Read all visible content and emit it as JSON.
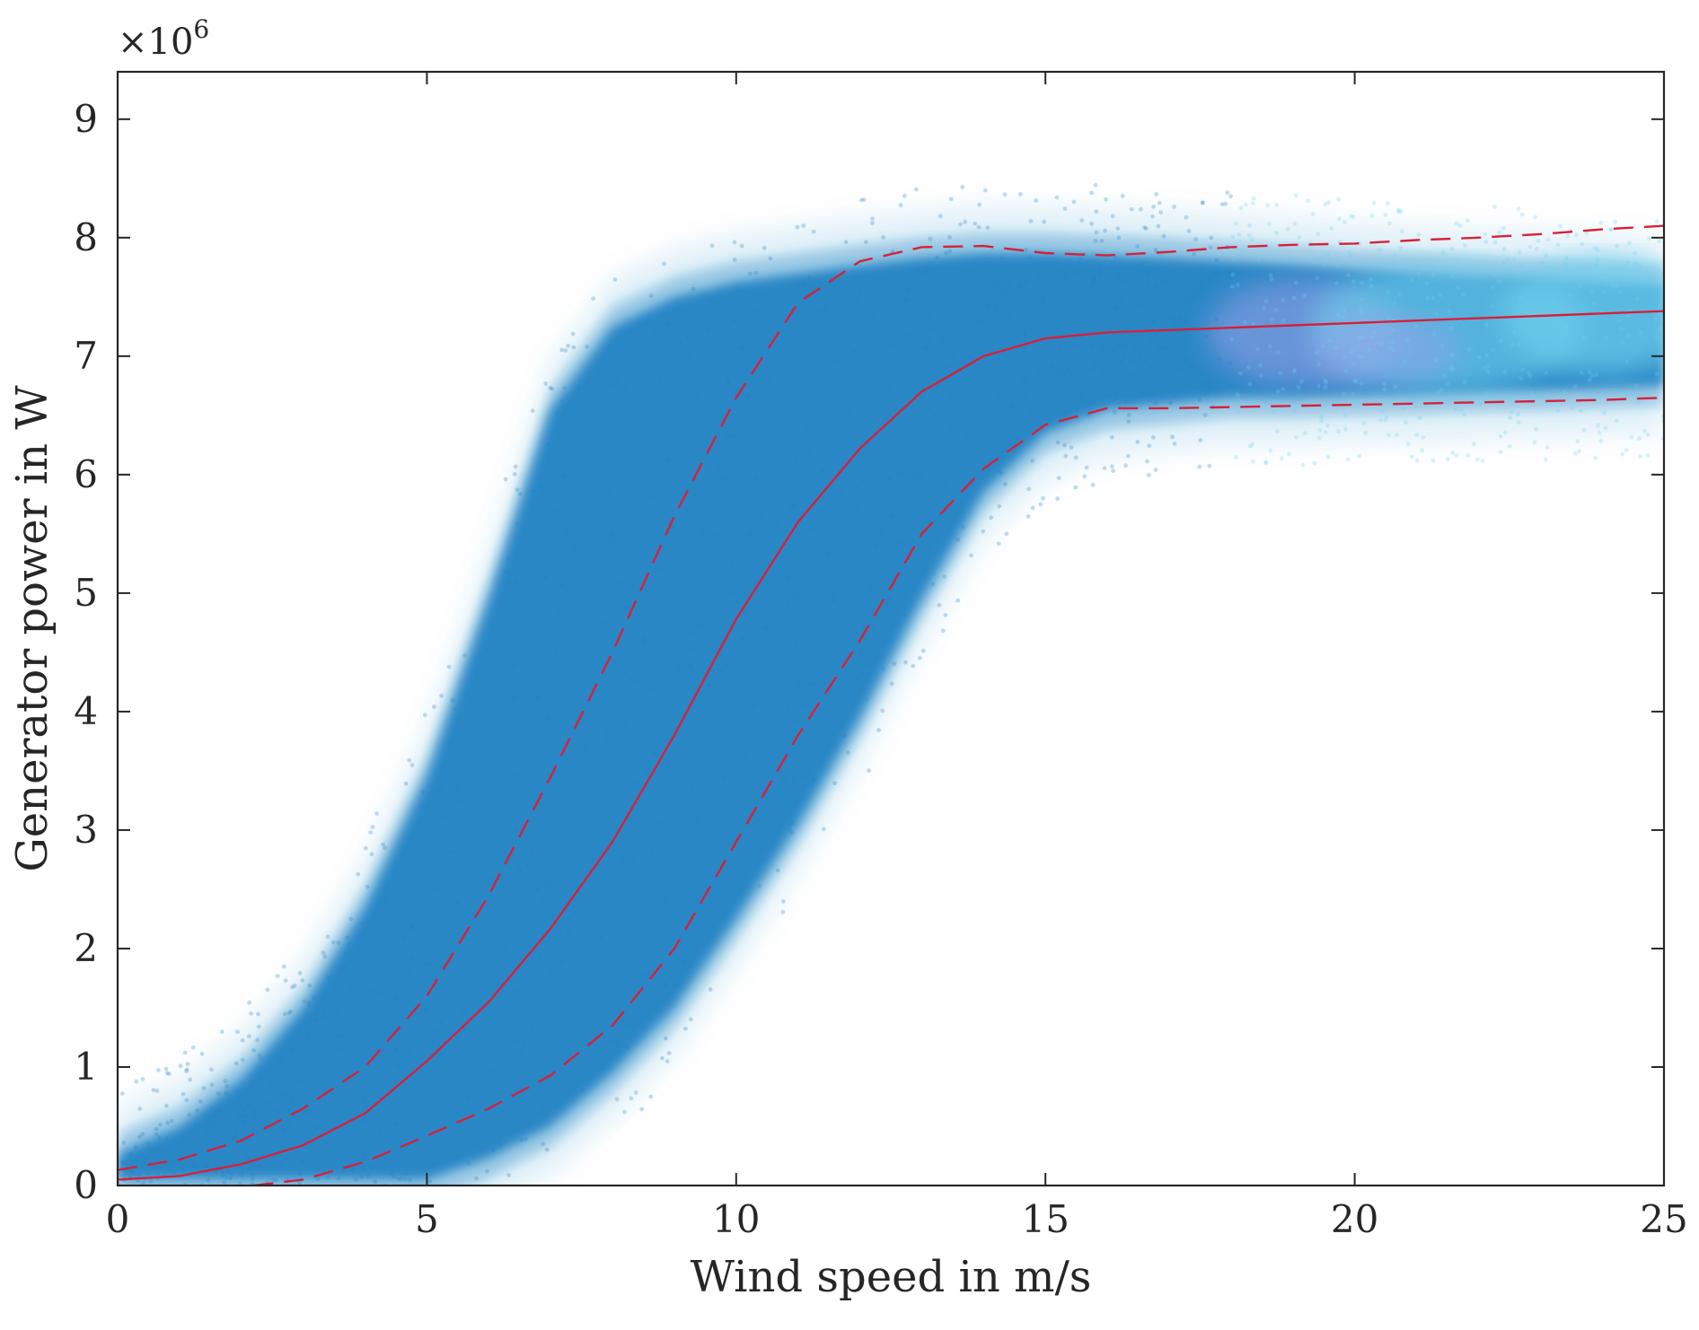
{
  "chart_data": {
    "type": "scatter",
    "xlabel": "Wind speed in m/s",
    "ylabel": "Generator power in W",
    "y_exponent_label": {
      "base": "×10",
      "power": "6"
    },
    "xlim": [
      0,
      25
    ],
    "ylim": [
      0,
      9.4
    ],
    "y_scale_factor": 1000000,
    "x_ticks": [
      0,
      5,
      10,
      15,
      20,
      25
    ],
    "x_tick_labels": [
      "0",
      "5",
      "10",
      "15",
      "20",
      "25"
    ],
    "y_ticks": [
      0,
      1,
      2,
      3,
      4,
      5,
      6,
      7,
      8,
      9
    ],
    "y_tick_labels": [
      "0",
      "1",
      "2",
      "3",
      "4",
      "5",
      "6",
      "7",
      "8",
      "9"
    ],
    "grid": false,
    "box": true,
    "colors": {
      "scatter": "#2383c4",
      "scatter_high_wind_a": "#6fd0ec",
      "scatter_high_wind_b": "#9b9fe8",
      "curves": "#d6203a",
      "axes": "#262626"
    },
    "series": [
      {
        "style": "solid",
        "x": [
          0,
          1,
          2,
          3,
          4,
          5,
          6,
          7,
          8,
          9,
          10,
          11,
          12,
          13,
          14,
          15,
          16,
          17,
          18,
          19,
          20,
          21,
          22,
          23,
          24,
          25
        ],
        "y": [
          0.05,
          0.08,
          0.18,
          0.34,
          0.61,
          1.05,
          1.55,
          2.17,
          2.9,
          3.8,
          4.78,
          5.6,
          6.22,
          6.7,
          7.0,
          7.15,
          7.2,
          7.22,
          7.24,
          7.26,
          7.28,
          7.3,
          7.32,
          7.34,
          7.36,
          7.38
        ]
      },
      {
        "style": "dashed",
        "x": [
          0,
          1,
          2,
          3,
          4,
          5,
          6,
          7,
          8,
          9,
          10,
          11,
          12,
          13,
          14,
          15,
          16,
          17,
          18,
          19,
          20,
          21,
          22,
          23,
          24,
          25
        ],
        "y": [
          0.13,
          0.22,
          0.38,
          0.65,
          1.0,
          1.6,
          2.45,
          3.45,
          4.5,
          5.65,
          6.65,
          7.45,
          7.8,
          7.92,
          7.93,
          7.87,
          7.85,
          7.88,
          7.92,
          7.94,
          7.95,
          7.98,
          8.0,
          8.03,
          8.07,
          8.1
        ]
      },
      {
        "style": "dashed",
        "x": [
          2.2,
          3,
          4,
          5,
          6,
          7,
          8,
          9,
          10,
          11,
          12,
          13,
          14,
          15,
          16,
          17,
          18,
          19,
          20,
          21,
          22,
          23,
          24,
          25
        ],
        "y": [
          0.0,
          0.05,
          0.2,
          0.42,
          0.65,
          0.93,
          1.35,
          2.0,
          2.9,
          3.8,
          4.6,
          5.5,
          6.05,
          6.42,
          6.56,
          6.56,
          6.57,
          6.58,
          6.59,
          6.6,
          6.61,
          6.62,
          6.63,
          6.65
        ]
      }
    ],
    "scatter_density_band": {
      "x": [
        0,
        1,
        2,
        3,
        4,
        5,
        6,
        7,
        8,
        9,
        10,
        11,
        12,
        13,
        14,
        15,
        16,
        17,
        18,
        19,
        20,
        21,
        22,
        23,
        24,
        25
      ],
      "y_low": [
        0.0,
        0.0,
        0.0,
        0.0,
        0.0,
        0.0,
        0.18,
        0.45,
        0.9,
        1.45,
        2.2,
        3.0,
        3.9,
        4.9,
        5.8,
        6.3,
        6.5,
        6.55,
        6.6,
        6.6,
        6.62,
        6.63,
        6.65,
        6.66,
        6.68,
        6.7
      ],
      "y_high": [
        0.32,
        0.55,
        0.95,
        1.55,
        2.4,
        3.5,
        5.0,
        6.6,
        7.3,
        7.55,
        7.68,
        7.75,
        7.82,
        7.88,
        7.92,
        7.92,
        7.9,
        7.88,
        7.85,
        7.82,
        7.78,
        7.75,
        7.72,
        7.7,
        7.68,
        7.65
      ]
    }
  }
}
